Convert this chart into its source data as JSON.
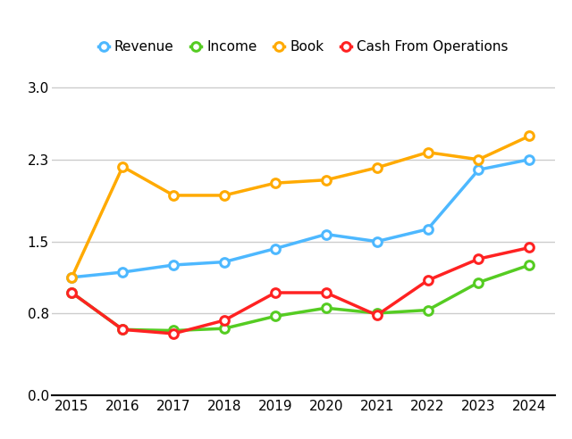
{
  "years": [
    2015,
    2016,
    2017,
    2018,
    2019,
    2020,
    2021,
    2022,
    2023,
    2024
  ],
  "revenue": [
    1.15,
    1.2,
    1.27,
    1.3,
    1.43,
    1.57,
    1.5,
    1.62,
    2.2,
    2.3
  ],
  "income": [
    1.0,
    0.64,
    0.63,
    0.65,
    0.77,
    0.85,
    0.8,
    0.83,
    1.1,
    1.27
  ],
  "book": [
    1.15,
    2.23,
    1.95,
    1.95,
    2.07,
    2.1,
    2.22,
    2.37,
    2.3,
    2.53
  ],
  "cash": [
    1.0,
    0.64,
    0.6,
    0.73,
    1.0,
    1.0,
    0.78,
    1.12,
    1.33,
    1.44
  ],
  "colors": {
    "revenue": "#4db8ff",
    "income": "#55cc22",
    "book": "#ffaa00",
    "cash": "#ff2222"
  },
  "legend_labels": [
    "Revenue",
    "Income",
    "Book",
    "Cash From Operations"
  ],
  "ylim": [
    0.0,
    3.3
  ],
  "yticks": [
    0.0,
    0.8,
    1.5,
    2.3,
    3.0
  ],
  "xlim": [
    2014.6,
    2024.5
  ],
  "background_color": "#ffffff",
  "grid_color": "#cccccc",
  "lw": 2.5,
  "ms": 7,
  "mew": 2.2
}
